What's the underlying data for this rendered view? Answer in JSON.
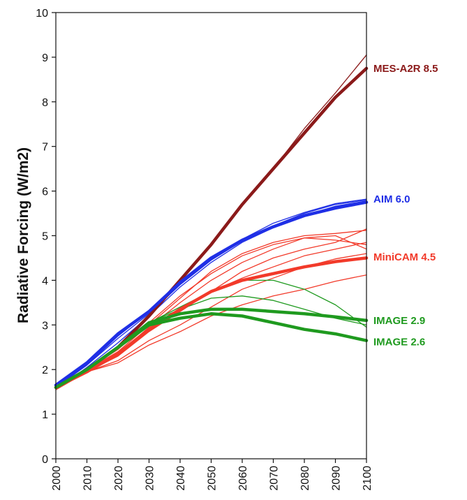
{
  "chart_data": {
    "type": "line",
    "title": "",
    "xlabel": "",
    "ylabel": "Radiative Forcing (W/m2)",
    "xlim": [
      2000,
      2100
    ],
    "ylim": [
      0,
      10
    ],
    "xticks": [
      2000,
      2010,
      2020,
      2030,
      2040,
      2050,
      2060,
      2070,
      2080,
      2090,
      2100
    ],
    "yticks": [
      0,
      1,
      2,
      3,
      4,
      5,
      6,
      7,
      8,
      9,
      10
    ],
    "grid": false,
    "legend": "none",
    "colors": {
      "mes": "#8b1a1a",
      "aim": "#1f2fe6",
      "minicam": "#f23a2a",
      "image": "#1f9a1f"
    },
    "series": [
      {
        "name": "MES-A2R 8.5",
        "group": "mes",
        "weight": "thick",
        "x": [
          2000,
          2010,
          2020,
          2030,
          2040,
          2050,
          2060,
          2070,
          2080,
          2090,
          2100
        ],
        "y": [
          1.6,
          2.0,
          2.5,
          3.2,
          4.0,
          4.8,
          5.7,
          6.5,
          7.3,
          8.1,
          8.75
        ]
      },
      {
        "group": "mes",
        "weight": "thin",
        "x": [
          2000,
          2010,
          2020,
          2030,
          2040,
          2050,
          2060,
          2070,
          2080,
          2090,
          2100
        ],
        "y": [
          1.6,
          2.0,
          2.5,
          3.2,
          4.0,
          4.8,
          5.7,
          6.5,
          7.4,
          8.2,
          9.05
        ]
      },
      {
        "name": "AIM 6.0",
        "group": "aim",
        "weight": "thick",
        "x": [
          2000,
          2010,
          2020,
          2030,
          2040,
          2050,
          2060,
          2070,
          2080,
          2090,
          2100
        ],
        "y": [
          1.65,
          2.15,
          2.8,
          3.3,
          3.95,
          4.5,
          4.9,
          5.2,
          5.45,
          5.62,
          5.75
        ]
      },
      {
        "group": "aim",
        "weight": "thin",
        "x": [
          2000,
          2010,
          2020,
          2030,
          2040,
          2050,
          2060,
          2070,
          2080,
          2090,
          2100
        ],
        "y": [
          1.6,
          2.1,
          2.75,
          3.3,
          3.95,
          4.5,
          4.92,
          5.28,
          5.52,
          5.72,
          5.82
        ]
      },
      {
        "group": "aim",
        "weight": "thin",
        "x": [
          2000,
          2010,
          2020,
          2030,
          2040,
          2050,
          2060,
          2070,
          2080,
          2090,
          2100
        ],
        "y": [
          1.6,
          2.1,
          2.7,
          3.25,
          3.9,
          4.45,
          4.88,
          5.22,
          5.5,
          5.7,
          5.8
        ]
      },
      {
        "group": "aim",
        "weight": "thin",
        "x": [
          2000,
          2010,
          2020,
          2030,
          2040,
          2050,
          2060,
          2070,
          2080,
          2090,
          2100
        ],
        "y": [
          1.55,
          2.05,
          2.6,
          3.2,
          3.85,
          4.4,
          4.85,
          5.18,
          5.45,
          5.66,
          5.78
        ]
      },
      {
        "name": "MiniCAM 4.5",
        "group": "minicam",
        "weight": "thick",
        "x": [
          2000,
          2010,
          2020,
          2030,
          2040,
          2050,
          2060,
          2070,
          2080,
          2090,
          2100
        ],
        "y": [
          1.6,
          1.95,
          2.35,
          2.9,
          3.35,
          3.75,
          4.0,
          4.15,
          4.3,
          4.42,
          4.5
        ]
      },
      {
        "group": "minicam",
        "weight": "thin",
        "x": [
          2000,
          2010,
          2020,
          2030,
          2040,
          2050,
          2060,
          2070,
          2080,
          2090,
          2100
        ],
        "y": [
          1.6,
          2.0,
          2.4,
          3.0,
          3.6,
          4.2,
          4.6,
          4.85,
          5.0,
          5.05,
          5.12
        ]
      },
      {
        "group": "minicam",
        "weight": "thin",
        "x": [
          2000,
          2010,
          2020,
          2030,
          2040,
          2050,
          2060,
          2070,
          2080,
          2090,
          2100
        ],
        "y": [
          1.6,
          2.0,
          2.45,
          3.05,
          3.65,
          4.15,
          4.55,
          4.8,
          4.95,
          5.0,
          4.7
        ]
      },
      {
        "group": "minicam",
        "weight": "thin",
        "x": [
          2000,
          2010,
          2020,
          2030,
          2040,
          2050,
          2060,
          2070,
          2080,
          2090,
          2100
        ],
        "y": [
          1.55,
          1.95,
          2.35,
          2.95,
          3.5,
          4.0,
          4.4,
          4.7,
          4.95,
          4.9,
          4.8
        ]
      },
      {
        "group": "minicam",
        "weight": "thin",
        "x": [
          2000,
          2010,
          2020,
          2030,
          2040,
          2050,
          2060,
          2070,
          2080,
          2090,
          2100
        ],
        "y": [
          1.6,
          1.95,
          2.3,
          2.85,
          3.3,
          3.75,
          4.2,
          4.5,
          4.7,
          4.85,
          5.15
        ]
      },
      {
        "group": "minicam",
        "weight": "thin",
        "x": [
          2000,
          2010,
          2020,
          2030,
          2040,
          2050,
          2060,
          2070,
          2080,
          2090,
          2100
        ],
        "y": [
          1.6,
          1.95,
          2.2,
          2.65,
          3.0,
          3.4,
          3.8,
          4.05,
          4.3,
          4.48,
          4.6
        ]
      },
      {
        "group": "minicam",
        "weight": "thin",
        "x": [
          2000,
          2010,
          2020,
          2030,
          2040,
          2050,
          2060,
          2070,
          2080,
          2090,
          2100
        ],
        "y": [
          1.55,
          1.95,
          2.15,
          2.55,
          2.85,
          3.2,
          3.45,
          3.65,
          3.8,
          3.98,
          4.12
        ]
      },
      {
        "group": "minicam",
        "weight": "thin",
        "x": [
          2000,
          2010,
          2020,
          2030,
          2040,
          2050,
          2060,
          2070,
          2080,
          2090,
          2100
        ],
        "y": [
          1.6,
          2.0,
          2.35,
          2.9,
          3.3,
          3.75,
          4.05,
          4.3,
          4.55,
          4.7,
          4.85
        ]
      },
      {
        "name": "IMAGE 2.9",
        "group": "image",
        "weight": "thick",
        "x": [
          2000,
          2010,
          2020,
          2030,
          2040,
          2050,
          2060,
          2070,
          2080,
          2090,
          2100
        ],
        "y": [
          1.6,
          2.0,
          2.5,
          3.05,
          3.25,
          3.35,
          3.35,
          3.3,
          3.25,
          3.18,
          3.1
        ]
      },
      {
        "name": "IMAGE 2.6",
        "group": "image",
        "weight": "thick",
        "x": [
          2000,
          2010,
          2020,
          2030,
          2040,
          2050,
          2060,
          2070,
          2080,
          2090,
          2100
        ],
        "y": [
          1.6,
          2.0,
          2.5,
          3.0,
          3.15,
          3.25,
          3.2,
          3.05,
          2.9,
          2.8,
          2.65
        ]
      },
      {
        "group": "image",
        "weight": "thin",
        "x": [
          2000,
          2010,
          2020,
          2030,
          2040,
          2050,
          2060,
          2070,
          2080,
          2090,
          2100
        ],
        "y": [
          1.6,
          2.0,
          2.5,
          3.05,
          3.4,
          3.75,
          4.0,
          4.0,
          3.8,
          3.45,
          2.95
        ]
      },
      {
        "group": "image",
        "weight": "thin",
        "x": [
          2000,
          2010,
          2020,
          2030,
          2040,
          2050,
          2060,
          2070,
          2080,
          2090,
          2100
        ],
        "y": [
          1.6,
          2.0,
          2.5,
          3.05,
          3.35,
          3.6,
          3.65,
          3.55,
          3.35,
          3.15,
          3.0
        ]
      }
    ],
    "labels": [
      {
        "text": "MES-A2R 8.5",
        "group": "mes",
        "y": 8.75
      },
      {
        "text": "AIM 6.0",
        "group": "aim",
        "y": 5.82
      },
      {
        "text": "MiniCAM 4.5",
        "group": "minicam",
        "y": 4.52
      },
      {
        "text": "IMAGE 2.9",
        "group": "image",
        "y": 3.1
      },
      {
        "text": "IMAGE 2.6",
        "group": "image",
        "y": 2.62
      }
    ]
  }
}
